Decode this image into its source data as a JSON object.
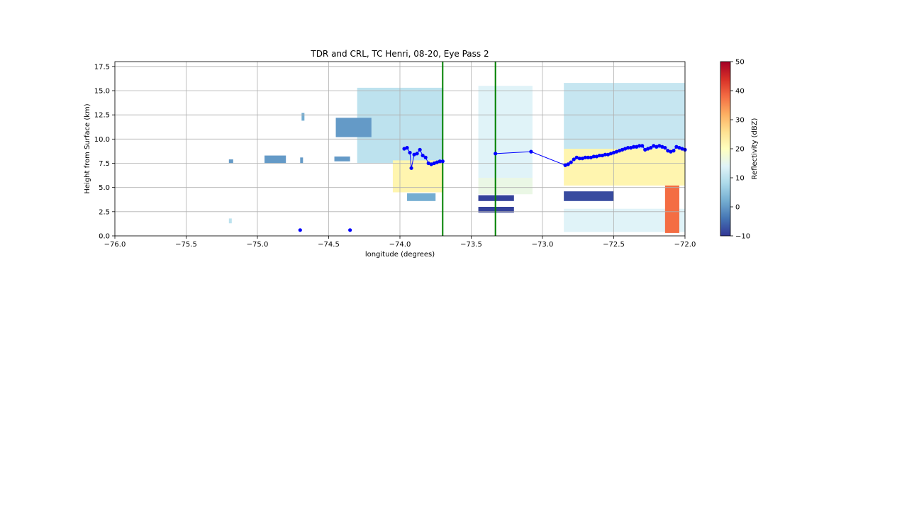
{
  "chart_data": {
    "type": "heatmap",
    "title": "TDR and CRL, TC Henri, 08-20, Eye Pass 2",
    "xlabel": "longitude (degrees)",
    "ylabel": "Height from Surface (km)",
    "xlim": [
      -76.0,
      -72.0
    ],
    "ylim": [
      0.0,
      18.0
    ],
    "xticks": [
      -76.0,
      -75.5,
      -75.0,
      -74.5,
      -74.0,
      -73.5,
      -73.0,
      -72.5,
      -72.0
    ],
    "xtick_labels": [
      "−76.0",
      "−75.5",
      "−75.0",
      "−74.5",
      "−74.0",
      "−73.5",
      "−73.0",
      "−72.5",
      "−72.0"
    ],
    "yticks": [
      0.0,
      2.5,
      5.0,
      7.5,
      10.0,
      12.5,
      15.0,
      17.5
    ],
    "ytick_labels": [
      "0.0",
      "2.5",
      "5.0",
      "7.5",
      "10.0",
      "12.5",
      "15.0",
      "17.5"
    ],
    "grid": true,
    "colorbar": {
      "label": "Reflectivity (dBZ)",
      "min": -10,
      "max": 50,
      "ticks": [
        -10,
        0,
        10,
        20,
        30,
        40,
        50
      ],
      "tick_labels": [
        "−10",
        "0",
        "10",
        "20",
        "30",
        "40",
        "50"
      ],
      "colormap": "RdYlBu_r",
      "colors": [
        "#313695",
        "#4575b4",
        "#74add1",
        "#abd9e9",
        "#e0f3f8",
        "#ffffbf",
        "#fee090",
        "#fdae61",
        "#f46d43",
        "#d73027",
        "#a50026"
      ]
    },
    "vertical_lines": [
      {
        "x": -73.7,
        "color": "#008000"
      },
      {
        "x": -73.33,
        "color": "#008000"
      }
    ],
    "reflectivity_regions": [
      {
        "x": [
          -74.3,
          -73.7
        ],
        "y": [
          7.5,
          15.3
        ],
        "dbz": 10
      },
      {
        "x": [
          -74.05,
          -73.7
        ],
        "y": [
          4.5,
          7.8
        ],
        "dbz": 22
      },
      {
        "x": [
          -74.45,
          -74.2
        ],
        "y": [
          10.2,
          12.2
        ],
        "dbz": 0
      },
      {
        "x": [
          -73.95,
          -73.75
        ],
        "y": [
          3.6,
          4.4
        ],
        "dbz": 2
      },
      {
        "x": [
          -73.45,
          -73.07
        ],
        "y": [
          6.0,
          15.5
        ],
        "dbz": 14
      },
      {
        "x": [
          -73.45,
          -73.07
        ],
        "y": [
          4.3,
          6.0
        ],
        "dbz": 16
      },
      {
        "x": [
          -73.45,
          -73.2
        ],
        "y": [
          3.6,
          4.2
        ],
        "dbz": -9
      },
      {
        "x": [
          -73.45,
          -73.2
        ],
        "y": [
          2.4,
          3.0
        ],
        "dbz": -9
      },
      {
        "x": [
          -72.85,
          -72.0
        ],
        "y": [
          9.0,
          15.8
        ],
        "dbz": 11
      },
      {
        "x": [
          -72.85,
          -72.0
        ],
        "y": [
          5.2,
          9.0
        ],
        "dbz": 22
      },
      {
        "x": [
          -72.85,
          -72.5
        ],
        "y": [
          3.6,
          4.6
        ],
        "dbz": -8
      },
      {
        "x": [
          -72.85,
          -72.0
        ],
        "y": [
          0.4,
          2.8
        ],
        "dbz": 14
      },
      {
        "x": [
          -72.14,
          -72.04
        ],
        "y": [
          0.3,
          5.2
        ],
        "dbz": 38
      },
      {
        "x": [
          -75.2,
          -75.17
        ],
        "y": [
          7.5,
          7.9
        ],
        "dbz": 0
      },
      {
        "x": [
          -74.95,
          -74.8
        ],
        "y": [
          7.5,
          8.3
        ],
        "dbz": 0
      },
      {
        "x": [
          -74.7,
          -74.68
        ],
        "y": [
          7.5,
          8.1
        ],
        "dbz": 0
      },
      {
        "x": [
          -74.46,
          -74.35
        ],
        "y": [
          7.7,
          8.2
        ],
        "dbz": 0
      },
      {
        "x": [
          -74.69,
          -74.67
        ],
        "y": [
          11.9,
          12.7
        ],
        "dbz": 2
      },
      {
        "x": [
          -75.2,
          -75.18
        ],
        "y": [
          1.3,
          1.8
        ],
        "dbz": 10
      }
    ],
    "series": [
      {
        "type": "line-markers",
        "color": "#0000ff",
        "x": [
          -74.7,
          -74.35,
          -73.97,
          -73.95,
          -73.93,
          -73.92,
          -73.9,
          -73.88,
          -73.86,
          -73.84,
          -73.82,
          -73.8,
          -73.78,
          -73.76,
          -73.74,
          -73.72,
          -73.7,
          -73.33,
          -73.08,
          -72.84,
          -72.82,
          -72.8,
          -72.78,
          -72.76,
          -72.74,
          -72.72,
          -72.7,
          -72.68,
          -72.66,
          -72.64,
          -72.62,
          -72.6,
          -72.58,
          -72.56,
          -72.54,
          -72.52,
          -72.5,
          -72.48,
          -72.46,
          -72.44,
          -72.42,
          -72.4,
          -72.38,
          -72.36,
          -72.34,
          -72.32,
          -72.3,
          -72.28,
          -72.26,
          -72.24,
          -72.22,
          -72.2,
          -72.18,
          -72.16,
          -72.14,
          -72.12,
          -72.1,
          -72.08,
          -72.06,
          -72.04,
          -72.02,
          -72.0
        ],
        "y": [
          0.6,
          0.6,
          9.0,
          9.1,
          8.6,
          7.0,
          8.4,
          8.5,
          8.9,
          8.3,
          8.1,
          7.5,
          7.4,
          7.5,
          7.6,
          7.7,
          7.7,
          8.5,
          8.7,
          7.3,
          7.4,
          7.6,
          7.9,
          8.1,
          8.0,
          8.0,
          8.1,
          8.1,
          8.1,
          8.2,
          8.2,
          8.3,
          8.3,
          8.4,
          8.4,
          8.5,
          8.6,
          8.7,
          8.8,
          8.9,
          9.0,
          9.1,
          9.1,
          9.2,
          9.2,
          9.3,
          9.3,
          8.9,
          9.0,
          9.1,
          9.3,
          9.2,
          9.3,
          9.2,
          9.1,
          8.8,
          8.7,
          8.8,
          9.2,
          9.1,
          9.0,
          8.9
        ]
      }
    ]
  }
}
